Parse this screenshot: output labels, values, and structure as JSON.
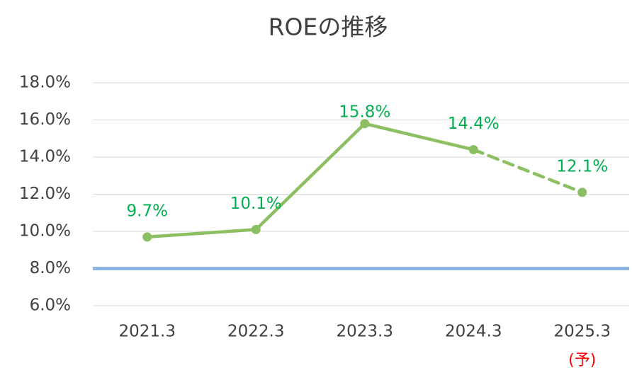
{
  "chart_data": {
    "type": "line",
    "title": "ROEの推移",
    "categories": [
      "2021.3",
      "2022.3",
      "2023.3",
      "2024.3",
      "2025.3"
    ],
    "values": [
      9.7,
      10.1,
      15.8,
      14.4,
      12.1
    ],
    "value_labels": [
      "9.7%",
      "10.1%",
      "15.8%",
      "14.4%",
      "12.1%"
    ],
    "color": "#8cbf62",
    "label_color": "#00b050",
    "dashed_segments": [
      3
    ],
    "ylim": [
      6,
      18
    ],
    "yticks": [
      {
        "value": 6,
        "label": "6.0%"
      },
      {
        "value": 8,
        "label": "8.0%"
      },
      {
        "value": 10,
        "label": "10.0%"
      },
      {
        "value": 12,
        "label": "12.0%"
      },
      {
        "value": 14,
        "label": "14.0%"
      },
      {
        "value": 16,
        "label": "16.0%"
      },
      {
        "value": 18,
        "label": "18.0%"
      }
    ],
    "grid": true,
    "reference_line": {
      "value": 8,
      "color": "#8eb4e3"
    },
    "annotation": "(予)",
    "annotation_color": "#ff0000"
  }
}
